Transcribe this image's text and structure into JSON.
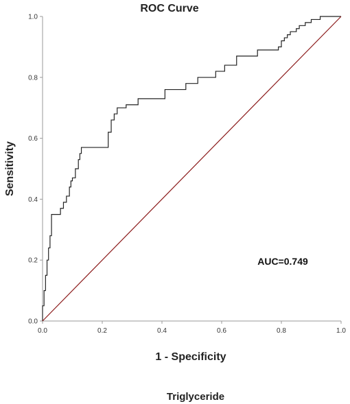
{
  "chart_data": {
    "type": "line",
    "title": "ROC Curve",
    "xlabel": "1 - Specificity",
    "ylabel": "Sensitivity",
    "caption": "Triglyceride",
    "annotation": "AUC=0.749",
    "xlim": [
      0.0,
      1.0
    ],
    "ylim": [
      0.0,
      1.0
    ],
    "xticks": [
      "0.0",
      "0.2",
      "0.4",
      "0.6",
      "0.8",
      "1.0"
    ],
    "yticks": [
      "0.0",
      "0.2",
      "0.4",
      "0.6",
      "0.8",
      "1.0"
    ],
    "grid": false,
    "series": [
      {
        "line_color": "#222222",
        "x": [
          0.0,
          0.0,
          0.005,
          0.005,
          0.01,
          0.01,
          0.015,
          0.015,
          0.02,
          0.02,
          0.025,
          0.025,
          0.03,
          0.03,
          0.04,
          0.04,
          0.06,
          0.06,
          0.07,
          0.07,
          0.08,
          0.08,
          0.09,
          0.09,
          0.095,
          0.095,
          0.1,
          0.1,
          0.11,
          0.11,
          0.12,
          0.12,
          0.125,
          0.125,
          0.13,
          0.13,
          0.22,
          0.22,
          0.23,
          0.23,
          0.24,
          0.24,
          0.25,
          0.25,
          0.28,
          0.28,
          0.32,
          0.32,
          0.41,
          0.41,
          0.48,
          0.48,
          0.52,
          0.52,
          0.58,
          0.58,
          0.61,
          0.61,
          0.65,
          0.65,
          0.72,
          0.72,
          0.79,
          0.79,
          0.8,
          0.8,
          0.81,
          0.81,
          0.82,
          0.82,
          0.83,
          0.83,
          0.85,
          0.85,
          0.86,
          0.86,
          0.87,
          0.87,
          0.88,
          0.88,
          0.9,
          0.9,
          0.93,
          0.93,
          1.0
        ],
        "y": [
          0.0,
          0.05,
          0.05,
          0.1,
          0.1,
          0.15,
          0.15,
          0.2,
          0.2,
          0.24,
          0.24,
          0.28,
          0.28,
          0.35,
          0.35,
          0.35,
          0.35,
          0.37,
          0.37,
          0.39,
          0.39,
          0.41,
          0.41,
          0.44,
          0.44,
          0.46,
          0.46,
          0.47,
          0.47,
          0.5,
          0.5,
          0.53,
          0.53,
          0.55,
          0.55,
          0.57,
          0.57,
          0.62,
          0.62,
          0.66,
          0.66,
          0.68,
          0.68,
          0.7,
          0.7,
          0.71,
          0.71,
          0.73,
          0.73,
          0.76,
          0.76,
          0.78,
          0.78,
          0.8,
          0.8,
          0.82,
          0.82,
          0.84,
          0.84,
          0.87,
          0.87,
          0.89,
          0.89,
          0.9,
          0.9,
          0.92,
          0.92,
          0.93,
          0.93,
          0.94,
          0.94,
          0.95,
          0.95,
          0.96,
          0.96,
          0.97,
          0.97,
          0.97,
          0.97,
          0.98,
          0.98,
          0.99,
          0.99,
          1.0,
          1.0
        ]
      },
      {
        "line_color": "#8b1a1a",
        "x": [
          0.0,
          1.0
        ],
        "y": [
          0.0,
          1.0
        ]
      }
    ]
  }
}
